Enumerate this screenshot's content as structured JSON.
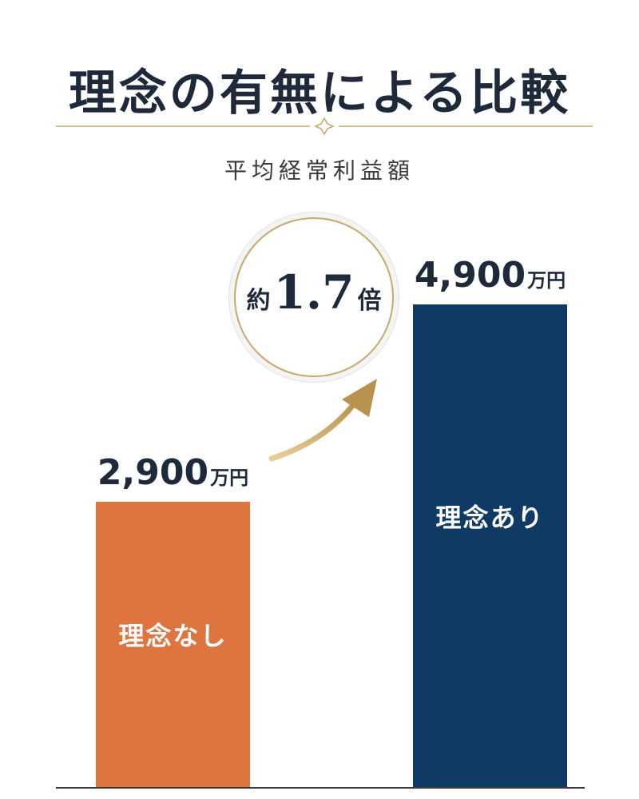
{
  "header": {
    "title": "理念の有無による比較",
    "subtitle": "平均経常利益額"
  },
  "badge": {
    "prefix": "約",
    "multiplier": "1.7",
    "suffix": "倍"
  },
  "colors": {
    "without": "#de7540",
    "with": "#0f3a63",
    "accent": "#c7a96b"
  },
  "chart_data": {
    "type": "bar",
    "title": "平均経常利益額",
    "categories": [
      "理念なし",
      "理念あり"
    ],
    "values": [
      2900,
      4900
    ],
    "value_labels": [
      "2,900",
      "4,900"
    ],
    "unit": "万円",
    "ylim": [
      0,
      6250
    ]
  }
}
